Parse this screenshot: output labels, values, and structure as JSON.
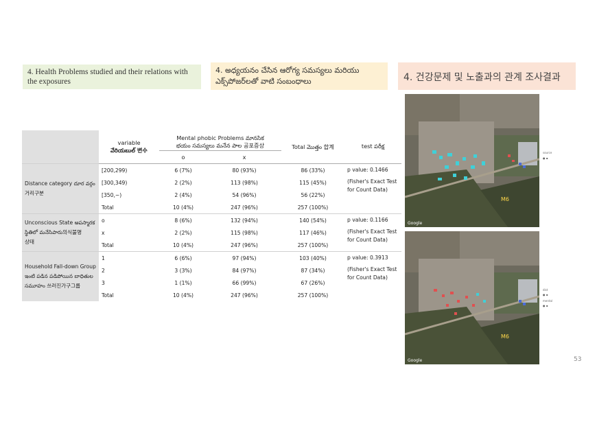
{
  "headers": {
    "english": "4. Health Problems studied and their relations with the exposures",
    "telugu_line1": "4. అధ్యయనం చేసిన ఆరోగ్య సమస్యలు మరియు",
    "telugu_line2": "ఎక్స్‌పోజర్‌లతో వాటి సంబంధాలు",
    "korean": "4. 건강문제 및 노출과의 관계 조사결과"
  },
  "table": {
    "col_variable_line1": "variable",
    "col_variable_line2": "వేరియబుల్ 변수",
    "col_mental_line1": "Mental phobic Problems మానసిక",
    "col_mental_line2": "భయం సమస్యలు మనేన పాల 공포증상",
    "col_o": "o",
    "col_x": "x",
    "col_total": "Total మొత్తం 합계",
    "col_test": "test పరీక్ష",
    "groups": [
      {
        "label_line1": "Distance category  దూర వర్గం",
        "label_line2": "거리구분",
        "test_line1": "p value: 0.1466",
        "test_line2": "(Fisher's Exact Test",
        "test_line3": "for Count Data)",
        "rows": [
          {
            "var": "[200,299)",
            "o": "6 (7%)",
            "x": "80 (93%)",
            "total": "86 (33%)"
          },
          {
            "var": "[300,349)",
            "o": "2 (2%)",
            "x": "113 (98%)",
            "total": "115 (45%)"
          },
          {
            "var": "[350,~)",
            "o": "2 (4%)",
            "x": "54 (96%)",
            "total": "56 (22%)"
          },
          {
            "var": "Total",
            "o": "10 (4%)",
            "x": "247 (96%)",
            "total": "257 (100%)"
          }
        ]
      },
      {
        "label_line1": "Unconscious State అపస్మారక",
        "label_line2": "స్థితిలో  మనేసిపారు의식불명",
        "label_line3": "상태",
        "test_line1": "p value: 0.1166",
        "test_line2": "(Fisher's Exact Test",
        "test_line3": "for Count Data)",
        "rows": [
          {
            "var": "o",
            "o": "8 (6%)",
            "x": "132 (94%)",
            "total": "140 (54%)"
          },
          {
            "var": "x",
            "o": "2 (2%)",
            "x": "115 (98%)",
            "total": "117 (46%)"
          },
          {
            "var": "Total",
            "o": "10 (4%)",
            "x": "247 (96%)",
            "total": "257 (100%)"
          }
        ]
      },
      {
        "label_line1": "Household Fall-down Group",
        "label_line2": "ఇంటి పడిన పడిపోయిన బాధితుల",
        "label_line3": "సమూహం 쓰러진가구그룹",
        "test_line1": "p value: 0.3913",
        "test_line2": "(Fisher's Exact Test",
        "test_line3": "for Count Data)",
        "rows": [
          {
            "var": "1",
            "o": "6 (6%)",
            "x": "97 (94%)",
            "total": "103 (40%)"
          },
          {
            "var": "2",
            "o": "3 (3%)",
            "x": "84 (97%)",
            "total": "87 (34%)"
          },
          {
            "var": "3",
            "o": "1 (1%)",
            "x": "66 (99%)",
            "total": "67 (26%)"
          },
          {
            "var": "Total",
            "o": "10 (4%)",
            "x": "247 (96%)",
            "total": "257 (100%)"
          }
        ]
      }
    ]
  },
  "maps": {
    "top_legend_title": "source",
    "bottom_legend_title": "dist",
    "bottom_legend_title2": "mental",
    "google_label": "Google"
  },
  "page_number": "53",
  "colors": {
    "english_header_bg": "#eaf2dc",
    "telugu_header_bg": "#fdf0d3",
    "korean_header_bg": "#fbe3d6",
    "table_grey": "#e0e0e0",
    "map_point_cyan": "#3fd0d8",
    "map_point_red": "#e05050"
  }
}
